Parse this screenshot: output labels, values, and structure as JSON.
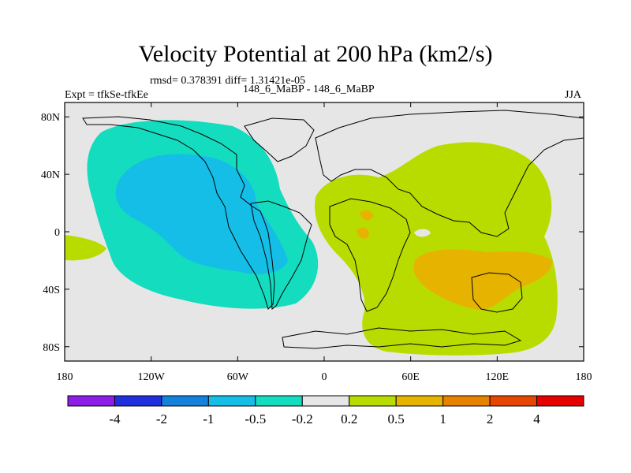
{
  "chart_data": {
    "type": "heatmap",
    "title": "Velocity Potential at 200 hPa (km2/s)",
    "stats_line": "rmsd= 0.378391 diff= 1.31421e-05",
    "left_label": "Expt = tfkSe-tfkEe",
    "center_label": "148_6_MaBP - 148_6_MaBP",
    "right_label": "JJA",
    "x_ticks": [
      "180",
      "120W",
      "60W",
      "0",
      "60E",
      "120E",
      "180"
    ],
    "x_tick_lons": [
      -180,
      -120,
      -60,
      0,
      60,
      120,
      180
    ],
    "y_ticks": [
      "80N",
      "40N",
      "0",
      "40S",
      "80S"
    ],
    "y_tick_lats": [
      80,
      40,
      0,
      -40,
      -80
    ],
    "xlim": [
      -180,
      180
    ],
    "ylim": [
      -90,
      90
    ],
    "colorbar": {
      "colors": [
        "#8c1ee6",
        "#2030dc",
        "#1482dc",
        "#14bee6",
        "#14dcbe",
        "#e6e6e6",
        "#b9dc00",
        "#e6b400",
        "#e68200",
        "#e64600",
        "#e60000"
      ],
      "tick_labels": [
        "-4",
        "-2",
        "-1",
        "-0.5",
        "-0.2",
        "0.2",
        "0.5",
        "1",
        "2",
        "4"
      ]
    },
    "regions": [
      {
        "name": "negative-anomaly-americas",
        "level": "-0.5 to -0.2",
        "color": "#14dcbe"
      },
      {
        "name": "negative-anomaly-core",
        "level": "-1 to -0.5",
        "color": "#14bee6"
      },
      {
        "name": "positive-anomaly-eastern-hemisphere",
        "level": "0.2 to 0.5",
        "color": "#b9dc00"
      },
      {
        "name": "positive-anomaly-core",
        "level": "0.5 to 1",
        "color": "#e6b400"
      }
    ]
  }
}
